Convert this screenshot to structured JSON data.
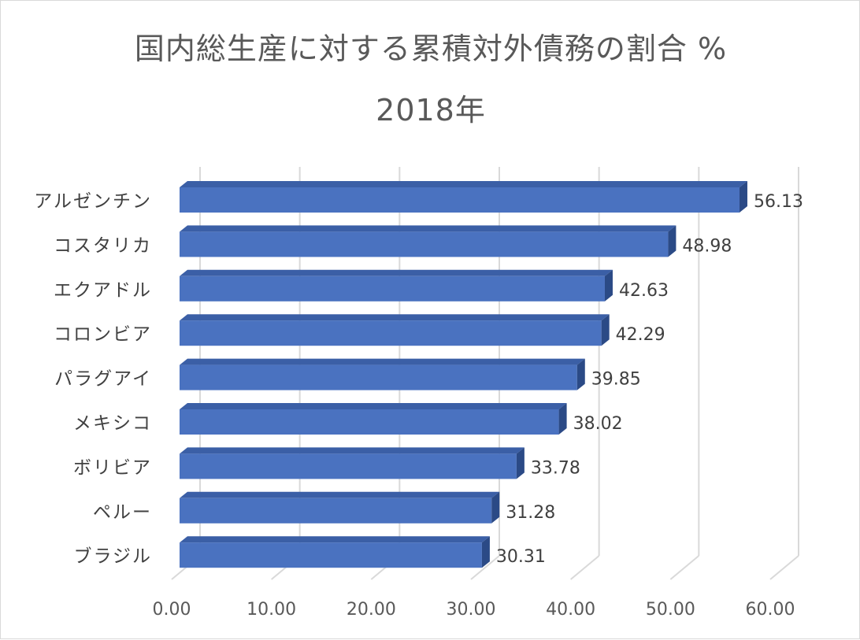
{
  "chart_data": {
    "type": "bar",
    "orientation": "horizontal",
    "style": "3d",
    "title": "国内総生産に対する累積対外債務の割合 %",
    "subtitle": "2018年",
    "categories": [
      "アルゼンチン",
      "コスタリカ",
      "エクアドル",
      "コロンビア",
      "パラグアイ",
      "メキシコ",
      "ボリビア",
      "ペルー",
      "ブラジル"
    ],
    "values": [
      56.13,
      48.98,
      42.63,
      42.29,
      39.85,
      38.02,
      33.78,
      31.28,
      30.31
    ],
    "data_labels": [
      "56.13",
      "48.98",
      "42.63",
      "42.29",
      "39.85",
      "38.02",
      "33.78",
      "31.28",
      "30.31"
    ],
    "x_ticks": [
      "0.00",
      "10.00",
      "20.00",
      "30.00",
      "40.00",
      "50.00",
      "60.00"
    ],
    "xlim": [
      0,
      60
    ],
    "xlabel": "",
    "ylabel": "",
    "grid": true,
    "legend": "none",
    "colors": {
      "bar_front": "#4a72c0",
      "bar_top": "#3b5fa6",
      "bar_side": "#2b4a86",
      "grid": "#d9d9d9",
      "text": "#595959"
    }
  }
}
